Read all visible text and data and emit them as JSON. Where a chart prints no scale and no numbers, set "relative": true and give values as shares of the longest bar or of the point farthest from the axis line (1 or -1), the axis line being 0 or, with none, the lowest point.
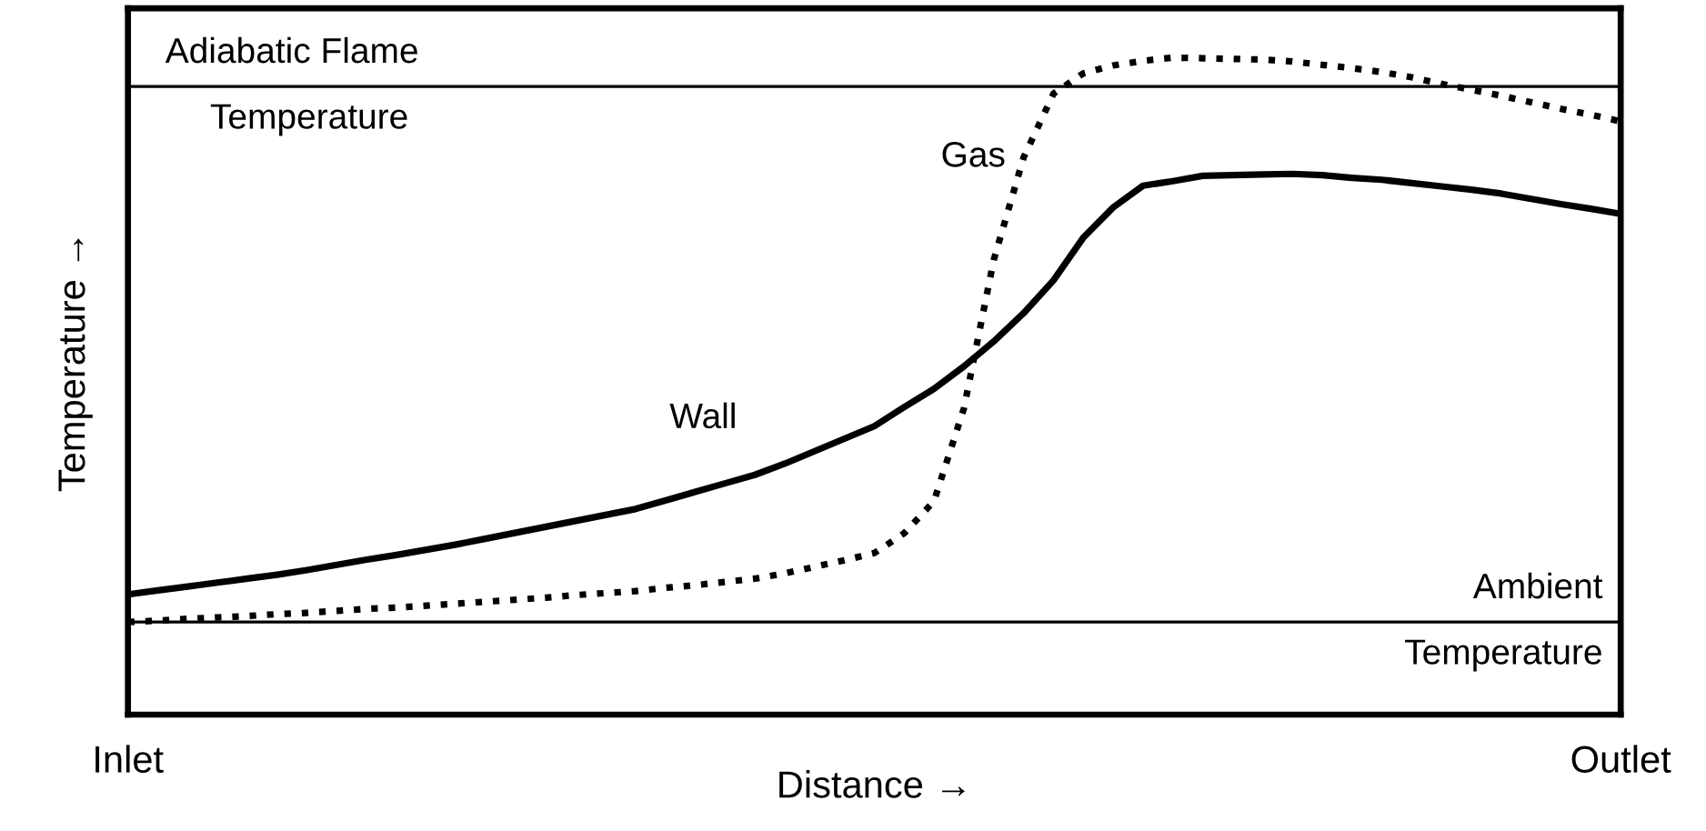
{
  "chart_data": {
    "type": "line",
    "relative": true,
    "xlabel": "Distance →",
    "ylabel": "Temperature →",
    "grid": false,
    "legend": false,
    "marker": "none",
    "categories": [
      "Inlet",
      null,
      null,
      null,
      null,
      null,
      null,
      null,
      null,
      null,
      null,
      null,
      null,
      null,
      null,
      null,
      null,
      null,
      null,
      null,
      null,
      null,
      null,
      null,
      null,
      null,
      null,
      null,
      null,
      null,
      null,
      null,
      null,
      null,
      null,
      null,
      null,
      null,
      null,
      null,
      null,
      null,
      null,
      null,
      null,
      null,
      null,
      null,
      null,
      null,
      "Outlet"
    ],
    "series": [
      {
        "name": "Wall",
        "color": "#000000",
        "line_style": "solid",
        "values": [
          0.183,
          0.189,
          0.195,
          0.201,
          0.207,
          0.213,
          0.22,
          0.228,
          0.236,
          0.243,
          0.251,
          0.259,
          0.268,
          0.277,
          0.286,
          0.295,
          0.304,
          0.313,
          0.326,
          0.339,
          0.352,
          0.365,
          0.382,
          0.401,
          0.42,
          0.439,
          0.468,
          0.496,
          0.53,
          0.568,
          0.611,
          0.661,
          0.726,
          0.772,
          0.805,
          0.812,
          0.82,
          0.821,
          0.822,
          0.823,
          0.821,
          0.817,
          0.814,
          0.809,
          0.804,
          0.799,
          0.793,
          0.785,
          0.777,
          0.77,
          0.762
        ]
      },
      {
        "name": "Gas",
        "color": "#000000",
        "line_style": "dotted",
        "values": [
          0.141,
          0.143,
          0.146,
          0.148,
          0.15,
          0.153,
          0.155,
          0.158,
          0.161,
          0.163,
          0.166,
          0.169,
          0.172,
          0.175,
          0.178,
          0.182,
          0.185,
          0.188,
          0.193,
          0.197,
          0.202,
          0.207,
          0.215,
          0.225,
          0.235,
          0.246,
          0.276,
          0.325,
          0.466,
          0.692,
          0.848,
          0.945,
          0.976,
          0.988,
          0.995,
          1.0,
          0.999,
          0.998,
          0.997,
          0.994,
          0.989,
          0.984,
          0.978,
          0.97,
          0.96,
          0.951,
          0.942,
          0.932,
          0.922,
          0.913,
          0.903
        ]
      }
    ],
    "ref_lines": [
      {
        "axis": "y",
        "value": 0.956,
        "label": "Adiabatic Flame\nTemperature",
        "color": "#000000"
      },
      {
        "axis": "y",
        "value": 0.141,
        "label": "Ambient\nTemperature",
        "color": "#000000"
      }
    ]
  }
}
